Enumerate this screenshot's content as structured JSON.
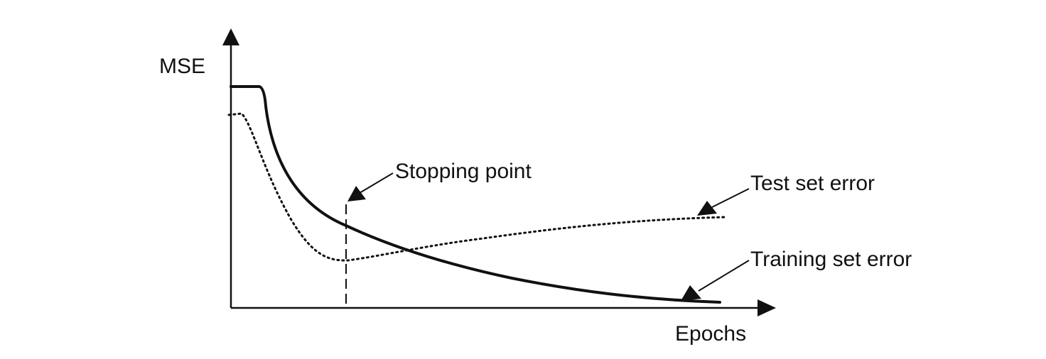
{
  "diagram": {
    "y_axis_label": "MSE",
    "x_axis_label": "Epochs",
    "annotations": {
      "stopping_point": "Stopping point",
      "test_set_error": "Test set error",
      "training_set_error": "Training set error"
    }
  }
}
